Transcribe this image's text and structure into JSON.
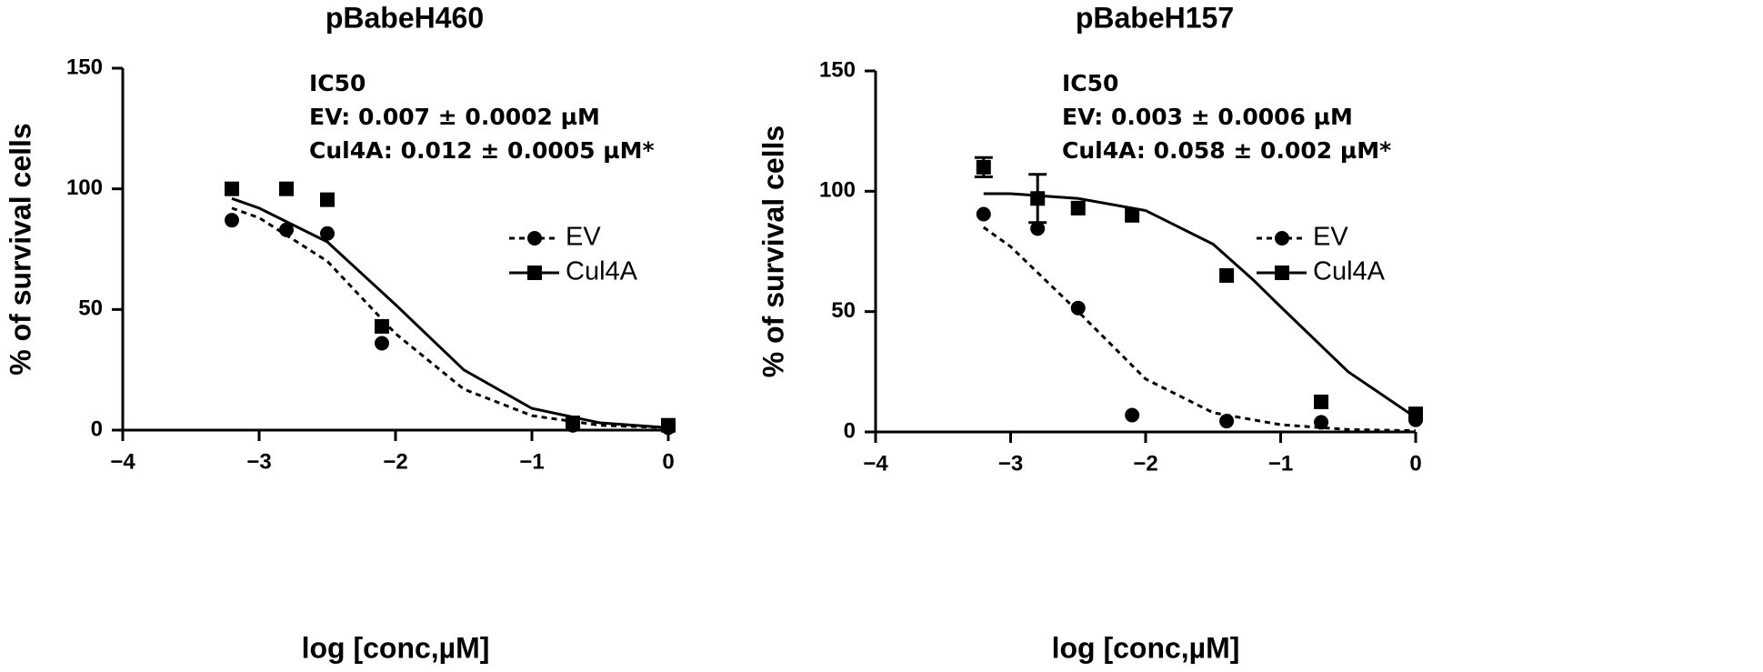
{
  "chart_data": [
    {
      "type": "scatter",
      "title": "pBabeH460",
      "x_label": "log [conc,µM]",
      "y_label": "% of survival cells",
      "annotations": [
        "IC50",
        "EV: 0.007 ± 0.0002 µM",
        "Cul4A: 0.012 ± 0.0005 µM*"
      ],
      "xlim": [
        -4,
        0
      ],
      "ylim": [
        0,
        150
      ],
      "xticks": [
        {
          "value": -4,
          "label": "−4"
        },
        {
          "value": -3,
          "label": "−3"
        },
        {
          "value": -2,
          "label": "−2"
        },
        {
          "value": -1,
          "label": "−1"
        },
        0
      ],
      "yticks": [
        0,
        50,
        100,
        150
      ],
      "legend": "right",
      "series": [
        {
          "name": "EV",
          "color": "#000000",
          "marker": "circle",
          "dash": true,
          "x": [
            -3.2,
            -2.8,
            -2.5,
            -2.1,
            -0.7,
            0
          ],
          "values": [
            87,
            83,
            81.5,
            36,
            2,
            1
          ],
          "fit": {
            "x": [
              -3.2,
              -3,
              -2.5,
              -2,
              -1.5,
              -1,
              -0.5,
              0
            ],
            "values": [
              92,
              88,
              70,
              40,
              17,
              6,
              2,
              1
            ]
          }
        },
        {
          "name": "Cul4A",
          "color": "#000000",
          "marker": "square",
          "dash": false,
          "x": [
            -3.2,
            -2.8,
            -2.5,
            -2.1,
            -0.7,
            0
          ],
          "values": [
            100,
            100,
            95.5,
            43,
            3,
            2
          ],
          "fit": {
            "x": [
              -3.2,
              -3,
              -2.5,
              -2,
              -1.5,
              -1,
              -0.5,
              0
            ],
            "values": [
              96,
              92,
              78,
              52,
              25,
              9,
              3,
              1
            ]
          }
        }
      ]
    },
    {
      "type": "scatter",
      "title": "pBabeH157",
      "x_label": "log [conc,µM]",
      "y_label": "% of survival cells",
      "annotations": [
        "IC50",
        "EV: 0.003 ± 0.0006 µM",
        "Cul4A: 0.058 ± 0.002 µM*"
      ],
      "xlim": [
        -4,
        0
      ],
      "ylim": [
        0,
        150
      ],
      "xticks": [
        {
          "value": -4,
          "label": "−4"
        },
        {
          "value": -3,
          "label": "−3"
        },
        {
          "value": -2,
          "label": "−2"
        },
        {
          "value": -1,
          "label": "−1"
        },
        0
      ],
      "yticks": [
        0,
        50,
        100,
        150
      ],
      "legend": "right",
      "series": [
        {
          "name": "EV",
          "color": "#000000",
          "marker": "circle",
          "dash": true,
          "x": [
            -3.2,
            -2.8,
            -2.5,
            -2.1,
            -1.4,
            -0.7,
            0
          ],
          "values": [
            90.5,
            84.5,
            51.5,
            7,
            4.5,
            4,
            5
          ],
          "fit": {
            "x": [
              -3.2,
              -3,
              -2.5,
              -2,
              -1.5,
              -1,
              -0.5,
              0
            ],
            "values": [
              85,
              77,
              50,
              22,
              8,
              3,
              1,
              0.5
            ]
          }
        },
        {
          "name": "Cul4A",
          "color": "#000000",
          "marker": "square",
          "dash": false,
          "x": [
            -3.2,
            -2.8,
            -2.5,
            -2.1,
            -1.4,
            -0.7,
            0
          ],
          "values": [
            110,
            97,
            93,
            90,
            65,
            12.5,
            7.5
          ],
          "errors": [
            4,
            10,
            null,
            null,
            null,
            null,
            null
          ],
          "fit": {
            "x": [
              -3.2,
              -3,
              -2.5,
              -2,
              -1.5,
              -1.2,
              -1,
              -0.5,
              0
            ],
            "values": [
              99,
              99,
              97,
              92,
              78,
              63,
              52,
              25,
              6
            ]
          }
        }
      ]
    }
  ]
}
